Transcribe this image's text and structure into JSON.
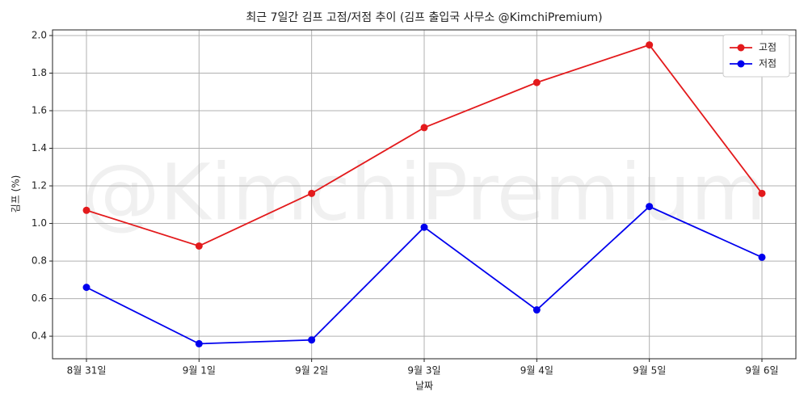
{
  "chart_data": {
    "type": "line",
    "title": "최근 7일간 김프 고점/저점 추이 (김프 출입국 사무소 @KimchiPremium)",
    "watermark": "@KimchiPremium",
    "x_label": "날짜",
    "y_label": "김프 (%)",
    "categories": [
      "8월 31일",
      "9월 1일",
      "9월 2일",
      "9월 3일",
      "9월 4일",
      "9월 5일",
      "9월 6일"
    ],
    "series": [
      {
        "name": "고점",
        "color": "#e31a1c",
        "values": [
          1.07,
          0.88,
          1.16,
          1.51,
          1.75,
          1.95,
          1.16
        ]
      },
      {
        "name": "저점",
        "color": "#0000ee",
        "values": [
          0.66,
          0.36,
          0.38,
          0.98,
          0.54,
          1.09,
          0.82
        ]
      }
    ],
    "ylim": [
      0.28,
      2.03
    ],
    "yticks": [
      0.4,
      0.6,
      0.8,
      {
        "value": 1,
        "label": "1.0"
      },
      1.2,
      1.4,
      1.6,
      1.8,
      {
        "value": 2,
        "label": "2.0"
      }
    ],
    "grid": true,
    "legend": "upper-right"
  }
}
